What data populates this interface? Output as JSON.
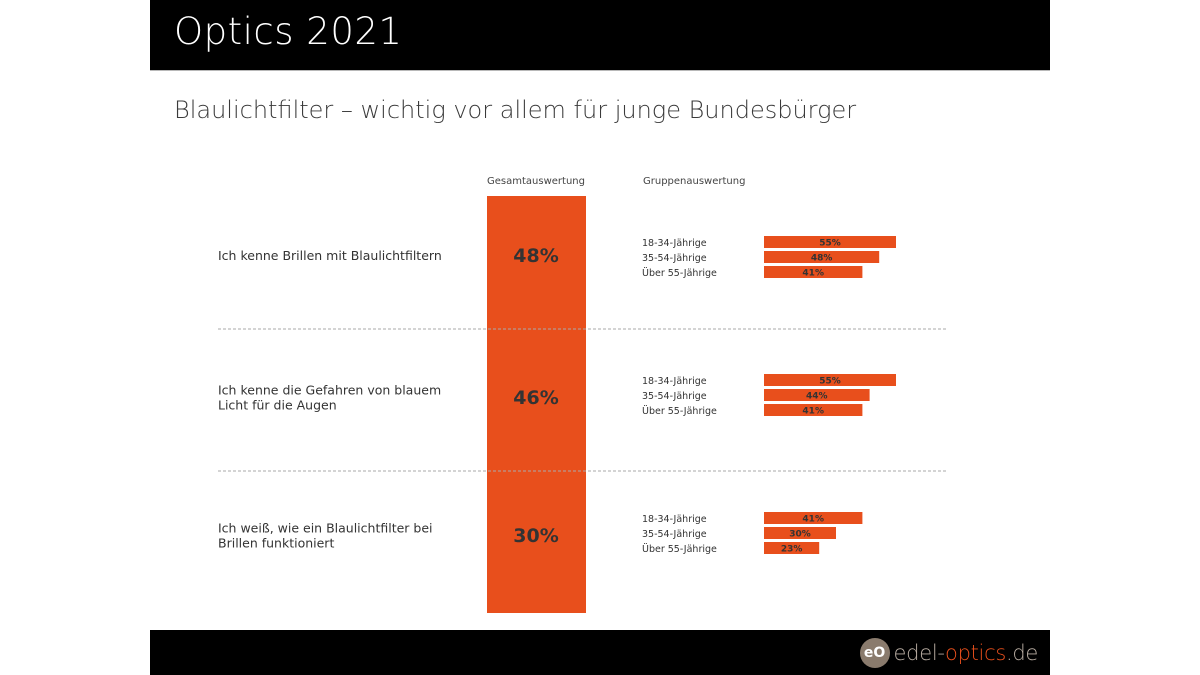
{
  "header": {
    "title": "Optics 2021"
  },
  "footer": {
    "logo_mark": "eO",
    "logo_part1": "edel-",
    "logo_part2": "optics",
    "logo_part3": ".de"
  },
  "colors": {
    "accent": "#e84f1c",
    "text": "#333333",
    "header_bg": "#000000",
    "divider": "#aaaaaa"
  },
  "chart_data": {
    "type": "bar",
    "title": "Blaulichtfilter – wichtig vor allem für junge Bundesbürger",
    "total_column_label": "Gesamtauswertung",
    "group_column_label": "Gruppenauswertung",
    "unit": "%",
    "groups": [
      "18-34-Jährige",
      "35-54-Jährige",
      "Über 55-Jährige"
    ],
    "questions": [
      {
        "label": "Ich kenne Brillen mit Blaulichtfiltern",
        "total": 48,
        "group_values": [
          55,
          48,
          41
        ]
      },
      {
        "label": "Ich kenne die Gefahren von blauem Licht für die Augen",
        "total": 46,
        "group_values": [
          55,
          44,
          41
        ]
      },
      {
        "label": "Ich weiß, wie ein Blaulichtfilter bei Brillen funktioniert",
        "total": 30,
        "group_values": [
          41,
          30,
          23
        ]
      }
    ]
  }
}
